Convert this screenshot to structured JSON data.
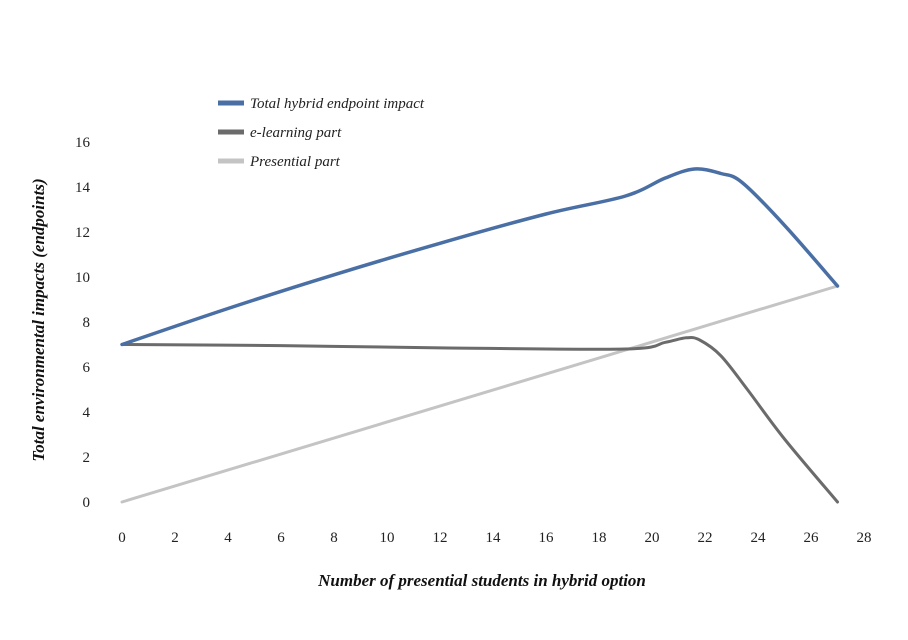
{
  "chart_data": {
    "type": "line",
    "title": "",
    "xlabel": "Number of presential students in hybrid option",
    "ylabel": "Total environmental impacts (endpoints)",
    "xlim": [
      0,
      28
    ],
    "ylim": [
      0,
      16
    ],
    "x_ticks": [
      "0",
      "2",
      "4",
      "6",
      "8",
      "10",
      "12",
      "14",
      "16",
      "18",
      "20",
      "22",
      "24",
      "26",
      "28"
    ],
    "y_ticks": [
      "0",
      "2",
      "4",
      "6",
      "8",
      "10",
      "12",
      "14",
      "16"
    ],
    "grid": false,
    "legend_position": "top-left",
    "series": [
      {
        "name": "Total hybrid endpoint impact",
        "color": "#4a6fa5",
        "x": [
          0,
          4,
          8,
          12,
          16,
          19,
          20.5,
          21.6,
          22.6,
          23.4,
          25,
          27
        ],
        "y": [
          7.0,
          8.6,
          10.1,
          11.5,
          12.8,
          13.6,
          14.4,
          14.8,
          14.6,
          14.2,
          12.3,
          9.6
        ]
      },
      {
        "name": "e-learning part",
        "color": "#6b6b6b",
        "x": [
          0,
          6,
          12,
          19,
          20.5,
          21.3,
          21.8,
          22.6,
          23.6,
          25,
          27
        ],
        "y": [
          7.0,
          6.95,
          6.85,
          6.8,
          7.1,
          7.3,
          7.2,
          6.5,
          5.0,
          2.8,
          0.0
        ]
      },
      {
        "name": "Presential part",
        "color": "#c4c4c4",
        "x": [
          0,
          27
        ],
        "y": [
          0.0,
          9.6
        ]
      }
    ]
  }
}
